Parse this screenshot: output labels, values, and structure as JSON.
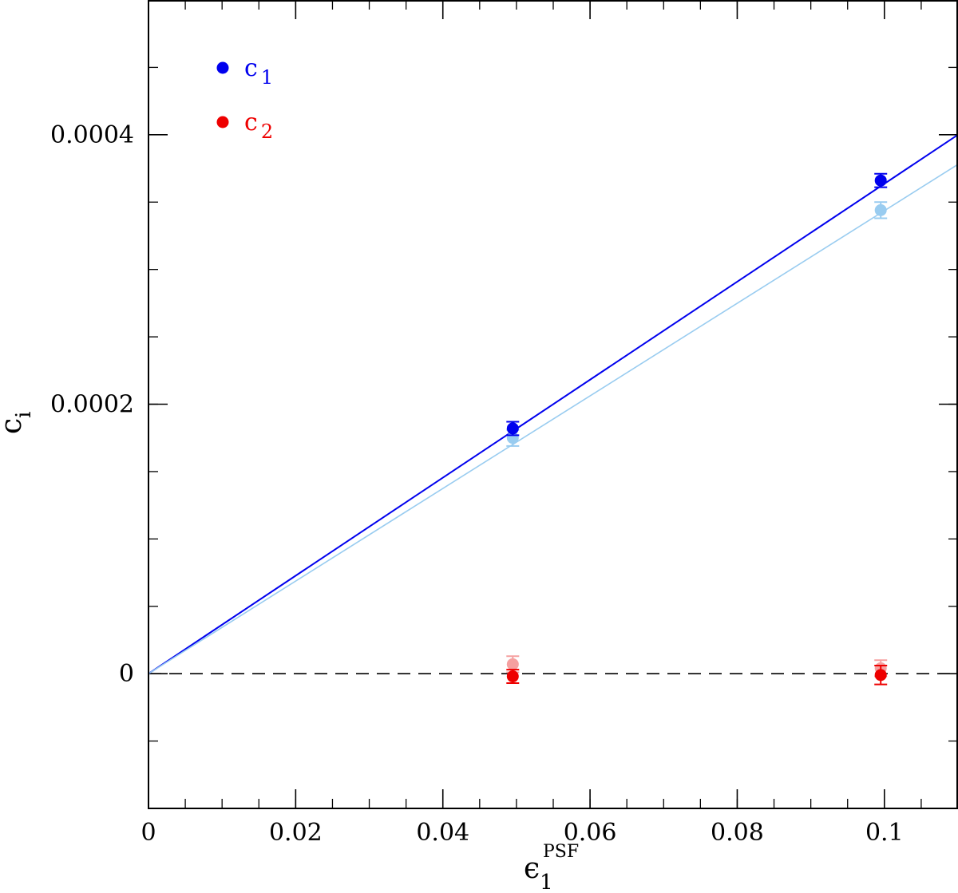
{
  "chart_data": {
    "type": "scatter",
    "xlabel": "ϵ",
    "xlabel_sub": "1",
    "xlabel_sup": "PSF",
    "ylabel": "c",
    "ylabel_sub": "i",
    "xlim": [
      0,
      0.11
    ],
    "ylim": [
      -0.0001,
      0.0005
    ],
    "x_ticks": [
      0,
      0.02,
      0.04,
      0.06,
      0.08,
      0.1
    ],
    "x_tick_labels": [
      "0",
      "0.02",
      "0.04",
      "0.06",
      "0.08",
      "0.1"
    ],
    "x_minor_step": 0.005,
    "y_ticks": [
      0,
      0.0002,
      0.0004
    ],
    "y_tick_labels": [
      "0",
      "0.0002",
      "0.0004"
    ],
    "y_minor_step": 5e-05,
    "zero_line": {
      "y": 0,
      "style": "dashed",
      "color": "#000000"
    },
    "legend": {
      "placement": "top-left",
      "entries": [
        {
          "label": "c",
          "sub": "1",
          "color": "#0000ee"
        },
        {
          "label": "c",
          "sub": "2",
          "color": "#ee0000"
        }
      ]
    },
    "series": [
      {
        "role": "c1",
        "color": "#0000ee",
        "points": [
          {
            "x": 0.0495,
            "y": 0.000182,
            "err": 5e-06
          },
          {
            "x": 0.0995,
            "y": 0.000366,
            "err": 5e-06
          }
        ],
        "fit": {
          "x": [
            0,
            0.11
          ],
          "y": [
            0,
            0.0004
          ]
        }
      },
      {
        "role": "c1-light",
        "color": "#99ccf0",
        "points": [
          {
            "x": 0.0495,
            "y": 0.000175,
            "err": 6e-06
          },
          {
            "x": 0.0995,
            "y": 0.000344,
            "err": 6e-06
          }
        ],
        "fit": {
          "x": [
            0,
            0.11
          ],
          "y": [
            0,
            0.000378
          ]
        }
      },
      {
        "role": "c2",
        "color": "#ee0000",
        "points": [
          {
            "x": 0.0495,
            "y": -2e-06,
            "err": 5e-06
          },
          {
            "x": 0.0995,
            "y": -1e-06,
            "err": 7e-06
          }
        ]
      },
      {
        "role": "c2-light",
        "color": "#f5a0a0",
        "points": [
          {
            "x": 0.0495,
            "y": 7e-06,
            "err": 6e-06
          },
          {
            "x": 0.0995,
            "y": 4e-06,
            "err": 6e-06
          }
        ]
      }
    ]
  }
}
